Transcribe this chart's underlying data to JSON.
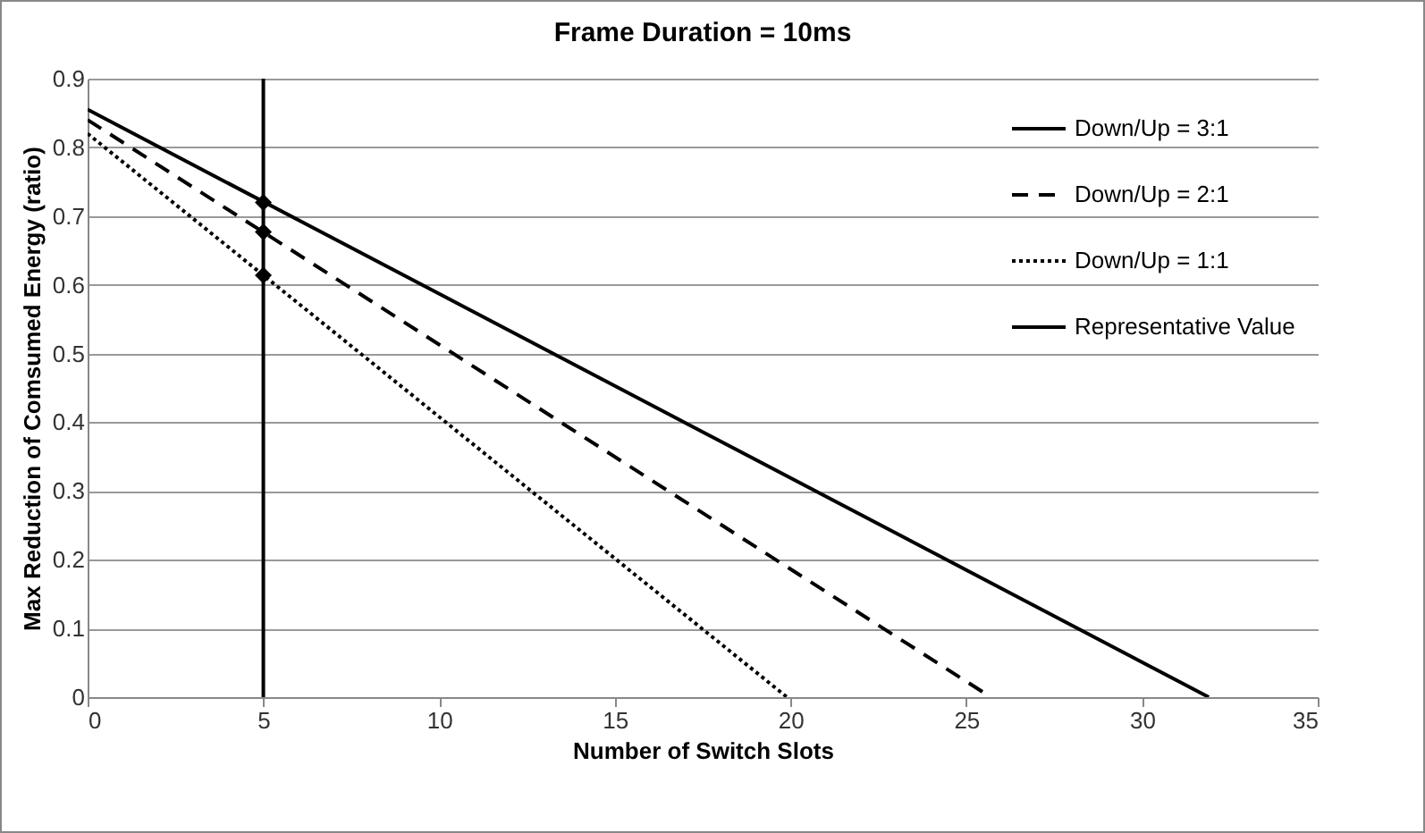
{
  "chart_data": {
    "type": "line",
    "title": "Frame Duration = 10ms",
    "xlabel": "Number of Switch Slots",
    "ylabel": "Max Reduction of Comsumed Energy (ratio)",
    "series": [
      {
        "name": "Down/Up = 3:1",
        "color": "#000000",
        "line_style": "solid",
        "x": [
          0,
          31.9
        ],
        "values": [
          0.855,
          0
        ]
      },
      {
        "name": "Down/Up = 2:1",
        "color": "#000000",
        "line_style": "dashed",
        "x": [
          0,
          25.7
        ],
        "values": [
          0.84,
          0
        ]
      },
      {
        "name": "Down/Up = 1:1",
        "color": "#000000",
        "line_style": "dotted",
        "x": [
          0,
          19.9
        ],
        "values": [
          0.82,
          0
        ]
      },
      {
        "name": "Representative Value",
        "color": "#000000",
        "line_style": "solid",
        "x": [
          5,
          5
        ],
        "values": [
          0,
          0.9
        ]
      },
      {
        "type": "scatter",
        "color": "#000000",
        "marker": "diamond",
        "x": [
          5,
          5,
          5
        ],
        "values": [
          0.72,
          0.677,
          0.614
        ]
      }
    ],
    "xlim": [
      0,
      35
    ],
    "xticks": [
      0,
      5,
      10,
      15,
      20,
      25,
      30,
      35
    ],
    "ylim": [
      0,
      0.9
    ],
    "yticks": [
      {
        "value": 0,
        "label": "0"
      },
      0.1,
      0.2,
      0.3,
      0.4,
      0.5,
      0.6,
      0.7,
      0.8,
      0.9
    ],
    "grid": "y",
    "legend": "top right"
  }
}
